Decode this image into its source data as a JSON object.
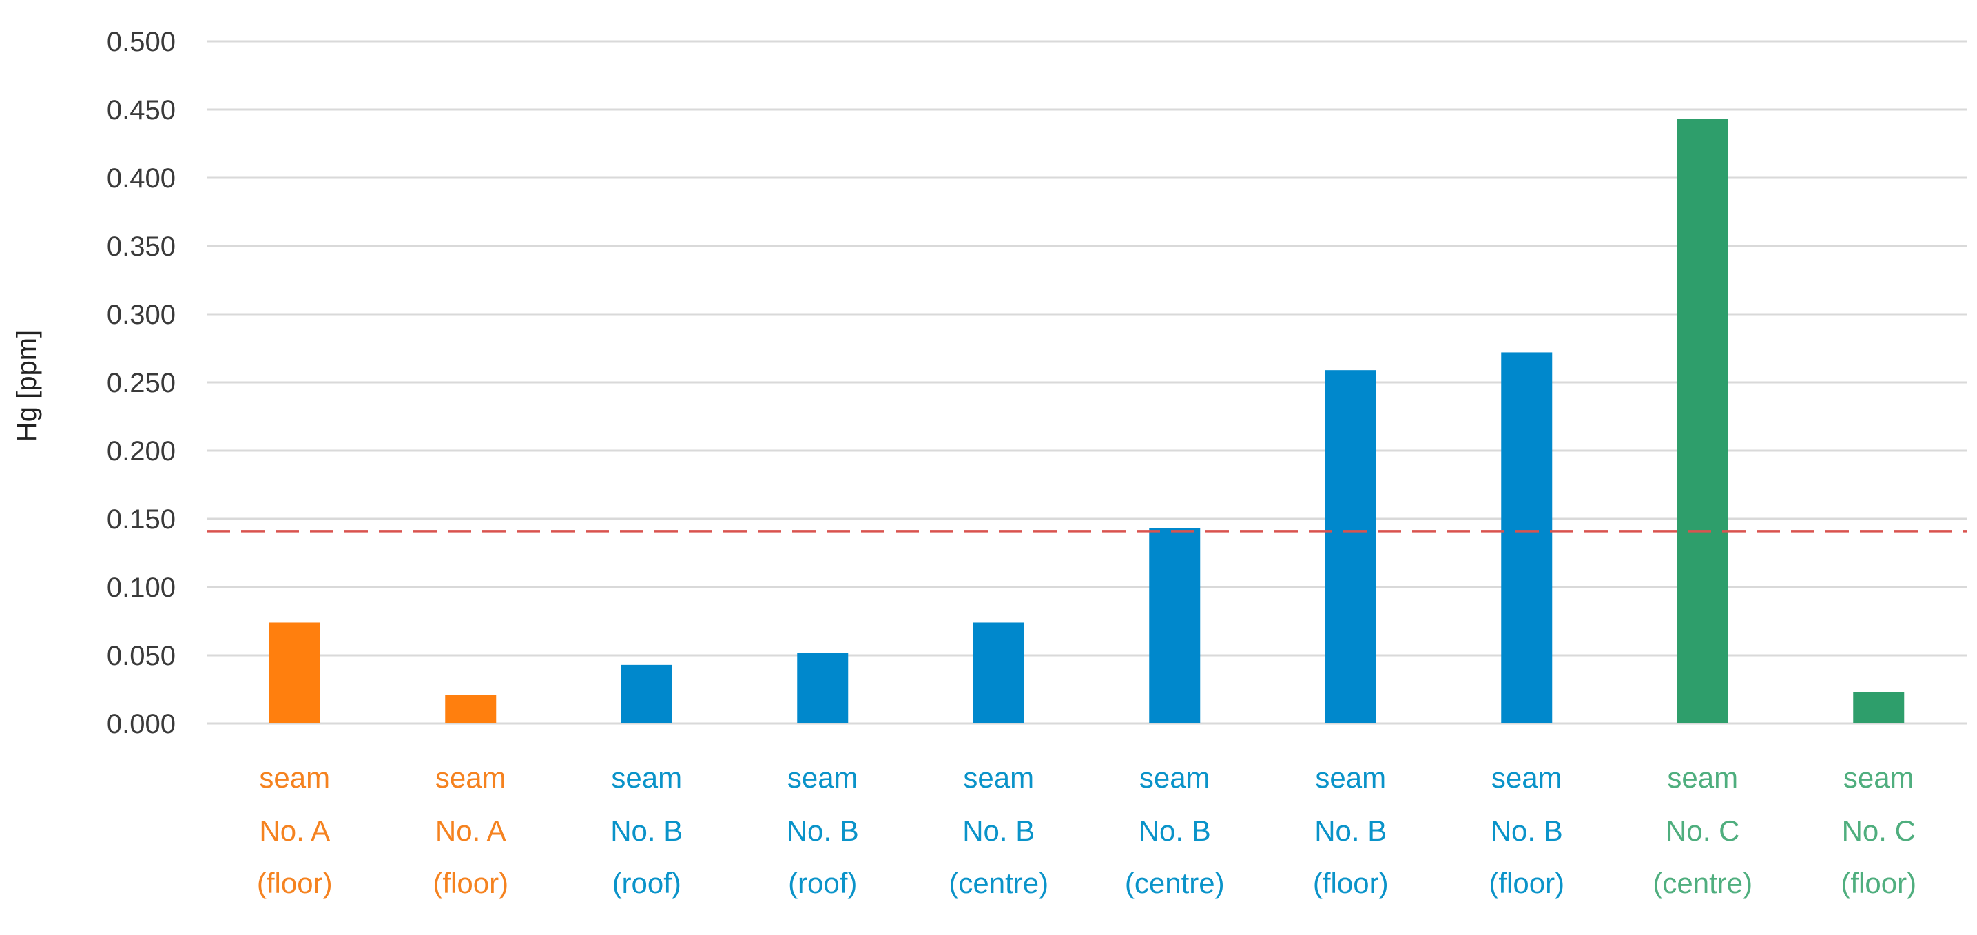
{
  "chart_data": {
    "type": "bar",
    "title": "",
    "xlabel": "",
    "ylabel": "Hg [ppm]",
    "ylim": [
      0,
      0.5
    ],
    "y_ticks": [
      "0.000",
      "0.050",
      "0.100",
      "0.150",
      "0.200",
      "0.250",
      "0.300",
      "0.350",
      "0.400",
      "0.450",
      "0.500"
    ],
    "grid": true,
    "threshold": 0.141,
    "categories": [
      [
        "seam",
        "No. A",
        "(floor)"
      ],
      [
        "seam",
        "No. A",
        "(floor)"
      ],
      [
        "seam",
        "No. B",
        "(roof)"
      ],
      [
        "seam",
        "No. B",
        "(roof)"
      ],
      [
        "seam",
        "No. B",
        "(centre)"
      ],
      [
        "seam",
        "No. B",
        "(centre)"
      ],
      [
        "seam",
        "No. B",
        "(floor)"
      ],
      [
        "seam",
        "No. B",
        "(floor)"
      ],
      [
        "seam",
        "No. C",
        "(centre)"
      ],
      [
        "seam",
        "No. C",
        "(floor)"
      ]
    ],
    "values": [
      0.074,
      0.021,
      0.043,
      0.052,
      0.074,
      0.143,
      0.259,
      0.272,
      0.443,
      0.023
    ],
    "bar_colors": [
      "#ff7f0e",
      "#ff7f0e",
      "#0088cc",
      "#0088cc",
      "#0088cc",
      "#0088cc",
      "#0088cc",
      "#0088cc",
      "#2e9e6b",
      "#2e9e6b"
    ],
    "label_colors": [
      "#f5821f",
      "#f5821f",
      "#0a93c9",
      "#0a93c9",
      "#0a93c9",
      "#0a93c9",
      "#0a93c9",
      "#0a93c9",
      "#4fae7e",
      "#4fae7e"
    ],
    "threshold_color": "#d9534f"
  }
}
